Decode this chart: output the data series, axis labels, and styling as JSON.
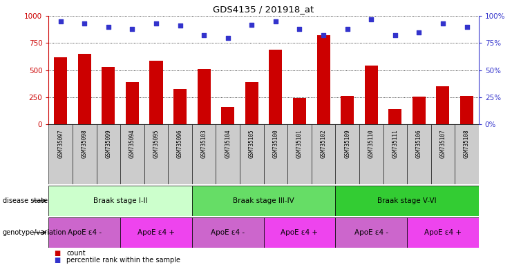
{
  "title": "GDS4135 / 201918_at",
  "samples": [
    "GSM735097",
    "GSM735098",
    "GSM735099",
    "GSM735094",
    "GSM735095",
    "GSM735096",
    "GSM735103",
    "GSM735104",
    "GSM735105",
    "GSM735100",
    "GSM735101",
    "GSM735102",
    "GSM735109",
    "GSM735110",
    "GSM735111",
    "GSM735106",
    "GSM735107",
    "GSM735108"
  ],
  "counts": [
    620,
    650,
    530,
    390,
    590,
    330,
    510,
    160,
    390,
    690,
    245,
    820,
    265,
    545,
    140,
    260,
    350,
    265
  ],
  "percentiles": [
    95,
    93,
    90,
    88,
    93,
    91,
    82,
    80,
    92,
    95,
    88,
    82,
    88,
    97,
    82,
    85,
    93,
    90
  ],
  "bar_color": "#cc0000",
  "dot_color": "#3333cc",
  "ylim_left": [
    0,
    1000
  ],
  "ylim_right": [
    0,
    100
  ],
  "yticks_left": [
    0,
    250,
    500,
    750,
    1000
  ],
  "yticks_right": [
    0,
    25,
    50,
    75,
    100
  ],
  "disease_stages": [
    {
      "label": "Braak stage I-II",
      "start": 0,
      "end": 6,
      "color": "#ccffcc"
    },
    {
      "label": "Braak stage III-IV",
      "start": 6,
      "end": 12,
      "color": "#66dd66"
    },
    {
      "label": "Braak stage V-VI",
      "start": 12,
      "end": 18,
      "color": "#33cc33"
    }
  ],
  "genotype_groups": [
    {
      "label": "ApoE ε4 -",
      "start": 0,
      "end": 3,
      "color": "#cc66cc"
    },
    {
      "label": "ApoE ε4 +",
      "start": 3,
      "end": 6,
      "color": "#ee44ee"
    },
    {
      "label": "ApoE ε4 -",
      "start": 6,
      "end": 9,
      "color": "#cc66cc"
    },
    {
      "label": "ApoE ε4 +",
      "start": 9,
      "end": 12,
      "color": "#ee44ee"
    },
    {
      "label": "ApoE ε4 -",
      "start": 12,
      "end": 15,
      "color": "#cc66cc"
    },
    {
      "label": "ApoE ε4 +",
      "start": 15,
      "end": 18,
      "color": "#ee44ee"
    }
  ],
  "label_disease_state": "disease state",
  "label_genotype": "genotype/variation",
  "legend_count": "count",
  "legend_percentile": "percentile rank within the sample",
  "left_axis_color": "#cc0000",
  "right_axis_color": "#3333cc",
  "background_color": "#ffffff",
  "tick_bg_color": "#cccccc"
}
